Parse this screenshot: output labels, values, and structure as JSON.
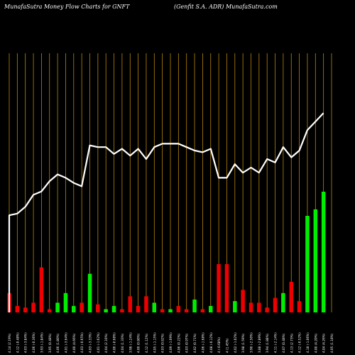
{
  "header": {
    "left_title": "MunafaSutra  Money Flow  Charts for GNFT",
    "right_title": "(Genfit S.A. ADR) MunafaSutra.com"
  },
  "colors": {
    "background": "#000000",
    "grid": "#b8860b",
    "line": "#ffffff",
    "up": "#00ee00",
    "down": "#ee0000"
  },
  "chart_data": {
    "type": "bar",
    "title": "MunafaSutra  Money Flow  Charts for GNFT",
    "subtitle": "(Genfit S.A. ADR) MunafaSutra.com",
    "categories": [
      "4.14 (2.19%)",
      "4.12 (-0.48%)",
      "4.03 (-3.84%)",
      "4.06 (-0.36%)",
      "3.93 (-1.84%)",
      "3.95 (0.48%)",
      "4.06 (1.80%)",
      "4.01 (-3.64%)",
      "4.00 (4.66%)",
      "4.03 (-0.65%)",
      "4.03 (-3.33%)",
      "4.01 (-1.62%)",
      "4.04 (2.10%)",
      "4.00 (-0.68%)",
      "4.04 (1.33%)",
      "3.98 (-1.24%)",
      "4.00 (0.80%)",
      "4.12 (1.12%)",
      "4.05 (-1.15%)",
      "4.03 (0.82%)",
      "4.09 (-1.69%)",
      "4.06 (0.22%)",
      "4.03 (0.97%)",
      "4.02 (0.71%)",
      "4.06 (-1.68%)",
      "4.08 (-0.12%)",
      "4 (-0.68%)",
      "4 (1.45%)",
      "4.02 (-1.02%)",
      "3.98 (1.59%)",
      "3.90 (-2.50%)",
      "3.88 (-2.89%)",
      "3.94 (1.88%)",
      "4.11 (-2.14%)",
      "4.07 (0.48%)",
      "4.13 (2.73%)",
      "4.12 (-0.52%)",
      "4.18 (-1.06%)",
      "4.00 (4.20%)",
      "4.04 (4.26%)",
      "4.05 (1.18%)"
    ],
    "money_flow": [
      57,
      58,
      62,
      69,
      71,
      77,
      81,
      79,
      76,
      74,
      98,
      97,
      97,
      93,
      96,
      92,
      96,
      90,
      97,
      99,
      99,
      99,
      97,
      95,
      94,
      96,
      79,
      79,
      87,
      82,
      85,
      82,
      90,
      88,
      97,
      91,
      95,
      107,
      112,
      117,
      0
    ],
    "volume": [
      12,
      4,
      3,
      6,
      28,
      2,
      6,
      12,
      4,
      6,
      24,
      5,
      2,
      4,
      2,
      10,
      4,
      10,
      6,
      2,
      2,
      4,
      2,
      8,
      2,
      4,
      30,
      30,
      7,
      14,
      6,
      6,
      3,
      9,
      12,
      19,
      7,
      60,
      64,
      75,
      0
    ],
    "direction": [
      "down",
      "down",
      "down",
      "down",
      "down",
      "down",
      "up",
      "up",
      "up",
      "down",
      "up",
      "down",
      "up",
      "up",
      "down",
      "down",
      "down",
      "down",
      "up",
      "down",
      "up",
      "down",
      "down",
      "up",
      "down",
      "up",
      "down",
      "down",
      "up",
      "down",
      "down",
      "down",
      "down",
      "down",
      "up",
      "down",
      "down",
      "up",
      "up",
      "up",
      "up"
    ],
    "line_ylim": [
      0,
      150
    ],
    "bar_ylim": [
      0,
      75
    ],
    "grid": true
  }
}
